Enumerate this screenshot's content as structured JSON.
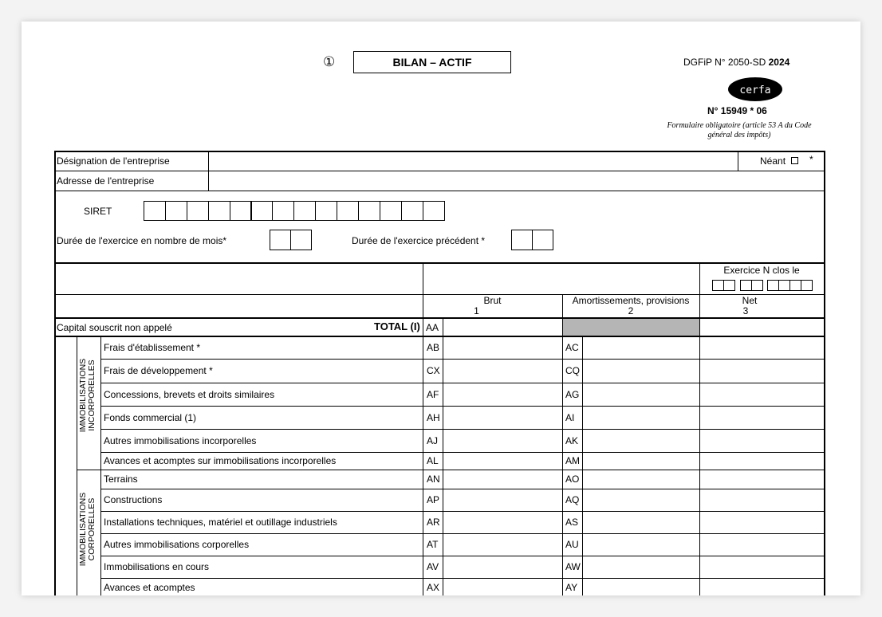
{
  "header": {
    "circle_number": "①",
    "title": "BILAN – ACTIF",
    "dgfip": "DGFiP N° 2050-SD",
    "year": "2024",
    "cerfa_logo": "cerfa",
    "form_number": "N° 15949 * 06",
    "obligatoire": "Formulaire obligatoire (article 53 A  du Code général des impôts)"
  },
  "identity": {
    "designation": "Désignation de l'entreprise",
    "neant": "Néant",
    "neant_star": "*",
    "adresse": "Adresse de l'entreprise",
    "siret": "SIRET",
    "duree": "Durée de l'exercice en nombre de mois*",
    "duree_prec": "Durée de l'exercice précédent *"
  },
  "columns": {
    "exercice": "Exercice N clos le",
    "brut": "Brut",
    "brut_n": "1",
    "amort": "Amortissements, provisions",
    "amort_n": "2",
    "net": "Net",
    "net_n": "3"
  },
  "capital": {
    "label": "Capital souscrit non appelé",
    "total": "TOTAL (I)",
    "code": "AA"
  },
  "groups": [
    {
      "label": "IMMOBILISATIONS INCORPORELLES",
      "rows": [
        {
          "label": "Frais d'établissement *",
          "code1": "AB",
          "code2": "AC"
        },
        {
          "label": "Frais de développement *",
          "code1": "CX",
          "code2": "CQ"
        },
        {
          "label": "Concessions, brevets et droits similaires",
          "code1": "AF",
          "code2": "AG"
        },
        {
          "label": "Fonds commercial (1)",
          "code1": "AH",
          "code2": "AI"
        },
        {
          "label": "Autres immobilisations incorporelles",
          "code1": "AJ",
          "code2": "AK"
        },
        {
          "label": "Avances et acomptes sur immobilisations incorporelles",
          "code1": "AL",
          "code2": "AM"
        }
      ]
    },
    {
      "label": "IMMOBILISATIONS CORPORELLES",
      "rows": [
        {
          "label": "Terrains",
          "code1": "AN",
          "code2": "AO"
        },
        {
          "label": "Constructions",
          "code1": "AP",
          "code2": "AQ"
        },
        {
          "label": "Installations techniques, matériel et outillage industriels",
          "code1": "AR",
          "code2": "AS"
        },
        {
          "label": "Autres immobilisations corporelles",
          "code1": "AT",
          "code2": "AU"
        },
        {
          "label": "Immobilisations en cours",
          "code1": "AV",
          "code2": "AW"
        },
        {
          "label": "Avances et acomptes",
          "code1": "AX",
          "code2": "AY"
        }
      ]
    }
  ]
}
